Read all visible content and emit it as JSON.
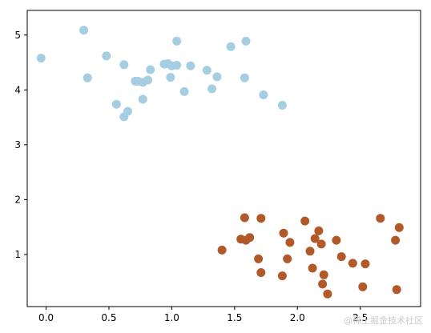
{
  "chart_data": {
    "type": "scatter",
    "title": "",
    "xlabel": "",
    "ylabel": "",
    "xlim": [
      -0.15,
      2.98
    ],
    "ylim": [
      0.05,
      5.45
    ],
    "xticks": [
      0.0,
      0.5,
      1.0,
      1.5,
      2.0,
      2.5
    ],
    "xtick_labels": [
      "0.0",
      "0.5",
      "1.0",
      "1.5",
      "2.0",
      "2.5"
    ],
    "yticks": [
      1,
      2,
      3,
      4,
      5
    ],
    "ytick_labels": [
      "1",
      "2",
      "3",
      "4",
      "5"
    ],
    "grid": false,
    "series": [
      {
        "color": "#a6cee3",
        "points": [
          [
            -0.04,
            4.58
          ],
          [
            0.3,
            5.09
          ],
          [
            0.33,
            4.22
          ],
          [
            0.48,
            4.62
          ],
          [
            0.56,
            3.74
          ],
          [
            0.62,
            4.46
          ],
          [
            0.62,
            3.51
          ],
          [
            0.65,
            3.61
          ],
          [
            0.71,
            4.16
          ],
          [
            0.73,
            4.16
          ],
          [
            0.77,
            3.83
          ],
          [
            0.77,
            4.14
          ],
          [
            0.81,
            4.18
          ],
          [
            0.83,
            4.37
          ],
          [
            0.94,
            4.47
          ],
          [
            0.97,
            4.48
          ],
          [
            0.99,
            4.23
          ],
          [
            1.0,
            4.44
          ],
          [
            1.04,
            4.89
          ],
          [
            1.04,
            4.45
          ],
          [
            1.1,
            3.97
          ],
          [
            1.15,
            4.44
          ],
          [
            1.28,
            4.36
          ],
          [
            1.32,
            4.02
          ],
          [
            1.36,
            4.24
          ],
          [
            1.47,
            4.79
          ],
          [
            1.58,
            4.22
          ],
          [
            1.59,
            4.89
          ],
          [
            1.73,
            3.91
          ],
          [
            1.88,
            3.72
          ]
        ]
      },
      {
        "color": "#b15928",
        "points": [
          [
            1.4,
            1.08
          ],
          [
            1.55,
            1.28
          ],
          [
            1.58,
            1.67
          ],
          [
            1.59,
            1.26
          ],
          [
            1.62,
            1.31
          ],
          [
            1.69,
            0.92
          ],
          [
            1.71,
            0.67
          ],
          [
            1.71,
            1.66
          ],
          [
            1.88,
            0.61
          ],
          [
            1.89,
            1.39
          ],
          [
            1.92,
            0.92
          ],
          [
            1.94,
            1.22
          ],
          [
            2.06,
            1.61
          ],
          [
            2.1,
            1.06
          ],
          [
            2.12,
            0.75
          ],
          [
            2.14,
            1.29
          ],
          [
            2.17,
            1.43
          ],
          [
            2.19,
            1.19
          ],
          [
            2.2,
            0.46
          ],
          [
            2.21,
            0.63
          ],
          [
            2.24,
            0.28
          ],
          [
            2.31,
            1.26
          ],
          [
            2.35,
            0.96
          ],
          [
            2.44,
            0.84
          ],
          [
            2.52,
            0.41
          ],
          [
            2.54,
            0.83
          ],
          [
            2.66,
            1.66
          ],
          [
            2.78,
            1.26
          ],
          [
            2.79,
            0.36
          ],
          [
            2.81,
            1.49
          ]
        ]
      }
    ]
  },
  "watermark": "@稀土掘金技术社区"
}
